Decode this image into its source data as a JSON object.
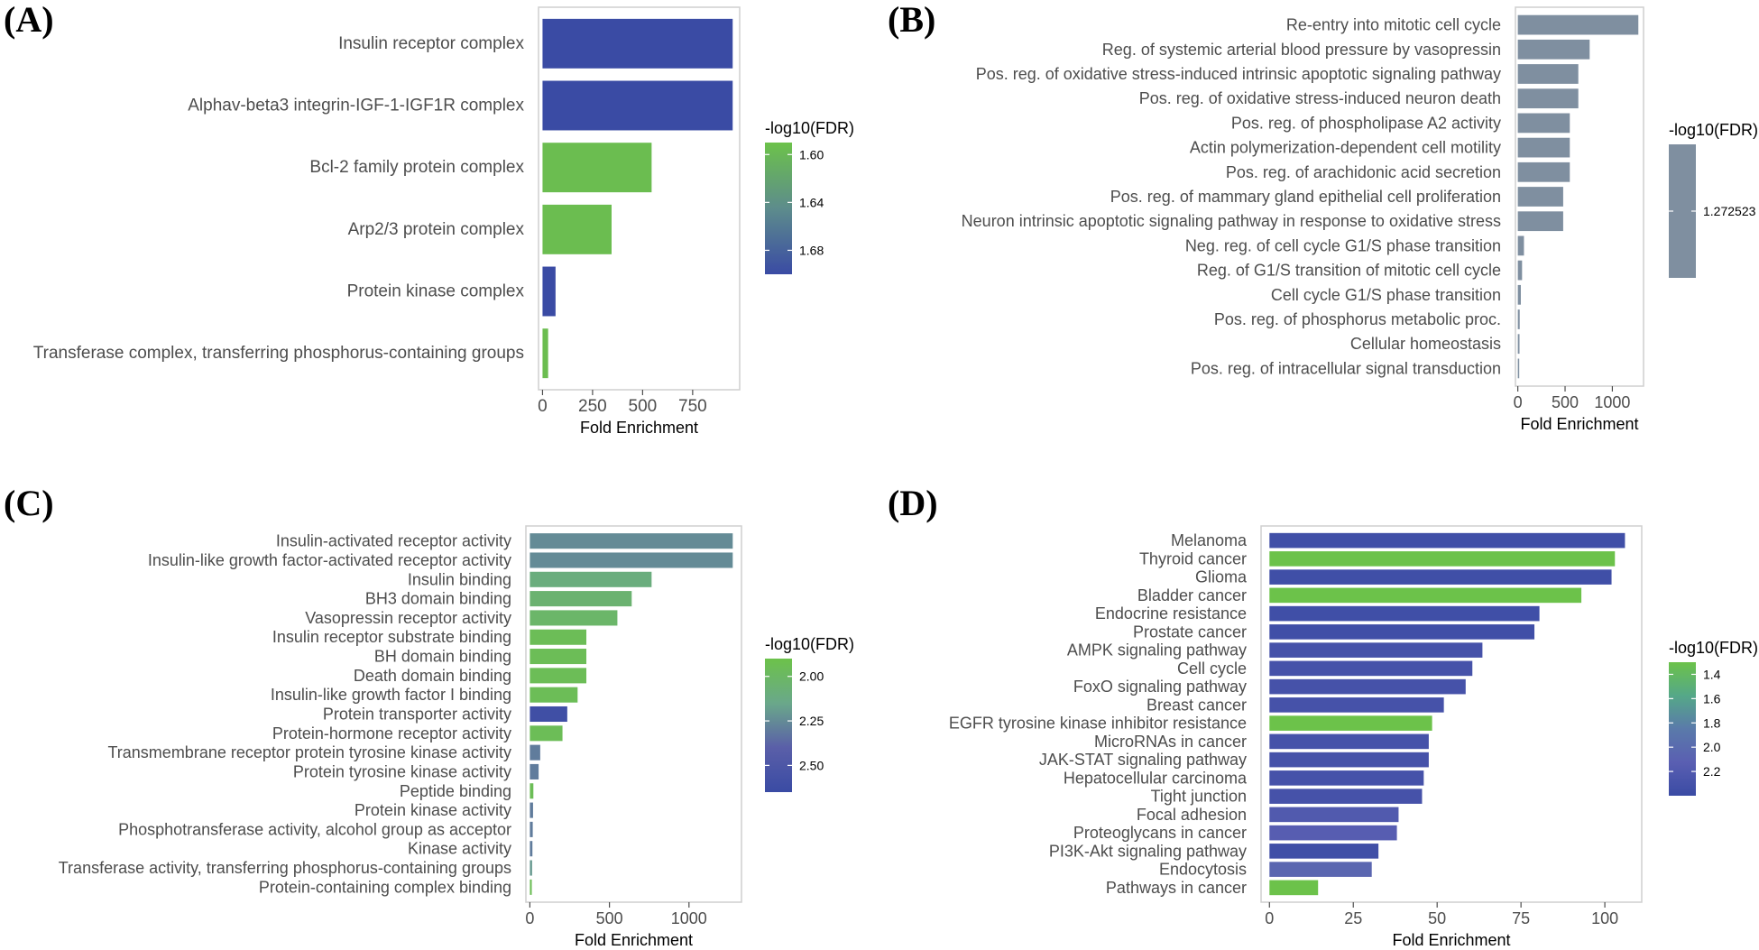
{
  "chart_data": [
    {
      "panel": "(A)",
      "type": "bar",
      "orientation": "horizontal",
      "categories": [
        "Insulin receptor complex",
        "Alphav-beta3 integrin-IGF-1-IGF1R complex",
        "Bcl-2 family protein complex",
        "Arp2/3 protein complex",
        "Protein kinase complex",
        "Transferase complex, transferring phosphorus-containing groups"
      ],
      "values": [
        950,
        950,
        545,
        345,
        65,
        28
      ],
      "color_values": [
        1.7,
        1.7,
        1.595,
        1.595,
        1.7,
        1.595
      ],
      "xlabel": "Fold Enrichment",
      "xlim": [
        -20,
        985
      ],
      "xticks": [
        0,
        250,
        500,
        750
      ],
      "xtick_labels": [
        "0",
        "250",
        "500",
        "750"
      ],
      "legend": {
        "title": "-log10(FDR)",
        "range": [
          1.59,
          1.7
        ],
        "ticks": [
          1.6,
          1.64,
          1.68
        ],
        "tick_labels": [
          "1.60",
          "1.64",
          "1.68"
        ],
        "colors_low_to_high": [
          "#6cc24a",
          "#5d8c8c",
          "#3a4ba4"
        ]
      }
    },
    {
      "panel": "(B)",
      "type": "bar",
      "orientation": "horizontal",
      "categories": [
        "Re-entry into mitotic cell cycle",
        "Reg. of systemic arterial blood pressure by vasopressin",
        "Pos. reg. of oxidative stress-induced intrinsic apoptotic signaling pathway",
        "Pos. reg. of oxidative stress-induced neuron death",
        "Pos. reg. of phospholipase A2 activity",
        "Actin polymerization-dependent cell motility",
        "Pos. reg. of arachidonic acid secretion",
        "Pos. reg. of mammary gland epithelial cell proliferation",
        "Neuron intrinsic apoptotic signaling pathway in response to oxidative stress",
        "Neg. reg. of cell cycle G1/S phase transition",
        "Reg. of G1/S transition of mitotic cell cycle",
        "Cell cycle G1/S phase transition",
        "Pos. reg. of phosphorus metabolic proc.",
        "Cellular homeostasis",
        "Pos. reg. of intracellular signal transduction"
      ],
      "values": [
        1275,
        760,
        640,
        640,
        550,
        550,
        550,
        480,
        480,
        65,
        45,
        32,
        20,
        18,
        15
      ],
      "xlabel": "Fold Enrichment",
      "xlim": [
        -25,
        1330
      ],
      "xticks": [
        0,
        500,
        1000
      ],
      "xtick_labels": [
        "0",
        "500",
        "1000"
      ],
      "bar_color": "#7f8fa0",
      "legend": {
        "title": "-log10(FDR)",
        "single_value_label": "1.272523",
        "color": "#7f8fa0"
      }
    },
    {
      "panel": "(C)",
      "type": "bar",
      "orientation": "horizontal",
      "categories": [
        "Insulin-activated receptor activity",
        "Insulin-like growth factor-activated receptor activity",
        "Insulin binding",
        "BH3 domain binding",
        "Vasopressin receptor activity",
        "Insulin receptor substrate binding",
        "BH domain binding",
        "Death domain binding",
        "Insulin-like growth factor I binding",
        "Protein transporter activity",
        "Protein-hormone receptor activity",
        "Transmembrane receptor protein tyrosine kinase activity",
        "Protein tyrosine kinase activity",
        "Peptide binding",
        "Protein kinase activity",
        "Phosphotransferase activity, alcohol group as acceptor",
        "Kinase activity",
        "Transferase activity, transferring phosphorus-containing groups",
        "Protein-containing complex binding"
      ],
      "values": [
        1275,
        1275,
        765,
        640,
        550,
        355,
        355,
        355,
        300,
        235,
        205,
        65,
        55,
        22,
        20,
        18,
        16,
        14,
        12
      ],
      "color_values": [
        2.25,
        2.25,
        2.1,
        2.05,
        2.02,
        1.95,
        1.95,
        1.95,
        1.95,
        2.6,
        1.95,
        2.3,
        2.3,
        1.95,
        2.3,
        2.3,
        2.3,
        2.2,
        1.95
      ],
      "xlabel": "Fold Enrichment",
      "xlim": [
        -25,
        1330
      ],
      "xticks": [
        0,
        500,
        1000
      ],
      "xtick_labels": [
        "0",
        "500",
        "1000"
      ],
      "legend": {
        "title": "-log10(FDR)",
        "range": [
          1.9,
          2.65
        ],
        "ticks": [
          2.0,
          2.25,
          2.5
        ],
        "tick_labels": [
          "2.00",
          "2.25",
          "2.50"
        ],
        "colors_low_to_high": [
          "#6cc24a",
          "#6aa88a",
          "#5a5fa8",
          "#3a4ba4"
        ]
      }
    },
    {
      "panel": "(D)",
      "type": "bar",
      "orientation": "horizontal",
      "categories": [
        "Melanoma",
        "Thyroid cancer",
        "Glioma",
        "Bladder cancer",
        "Endocrine resistance",
        "Prostate cancer",
        "AMPK signaling pathway",
        "Cell cycle",
        "FoxO signaling pathway",
        "Breast cancer",
        "EGFR tyrosine kinase inhibitor resistance",
        "MicroRNAs in cancer",
        "JAK-STAT signaling pathway",
        "Hepatocellular carcinoma",
        "Tight junction",
        "Focal adhesion",
        "Proteoglycans in cancer",
        "PI3K-Akt signaling pathway",
        "Endocytosis",
        "Pathways in cancer"
      ],
      "values": [
        106,
        103,
        102,
        93,
        80.5,
        79,
        63.5,
        60.5,
        58.5,
        52,
        48.5,
        47.5,
        47.5,
        46,
        45.5,
        38.5,
        38,
        32.5,
        30.5,
        14.5
      ],
      "color_values": [
        2.35,
        1.3,
        2.35,
        1.3,
        2.35,
        2.35,
        2.3,
        2.3,
        2.3,
        2.3,
        1.3,
        2.3,
        2.3,
        2.3,
        2.3,
        2.2,
        2.15,
        2.35,
        2.05,
        1.3
      ],
      "xlabel": "Fold Enrichment",
      "xlim": [
        -2.5,
        111
      ],
      "xticks": [
        0,
        25,
        50,
        75,
        100
      ],
      "xtick_labels": [
        "0",
        "25",
        "50",
        "75",
        "100"
      ],
      "legend": {
        "title": "-log10(FDR)",
        "range": [
          1.3,
          2.4
        ],
        "ticks": [
          1.4,
          1.6,
          1.8,
          2.0,
          2.2
        ],
        "tick_labels": [
          "1.4",
          "1.6",
          "1.8",
          "2.0",
          "2.2"
        ],
        "colors_low_to_high": [
          "#6cc24a",
          "#55a888",
          "#5a7aaa",
          "#5a5fb2",
          "#3a4ba4"
        ]
      }
    }
  ]
}
